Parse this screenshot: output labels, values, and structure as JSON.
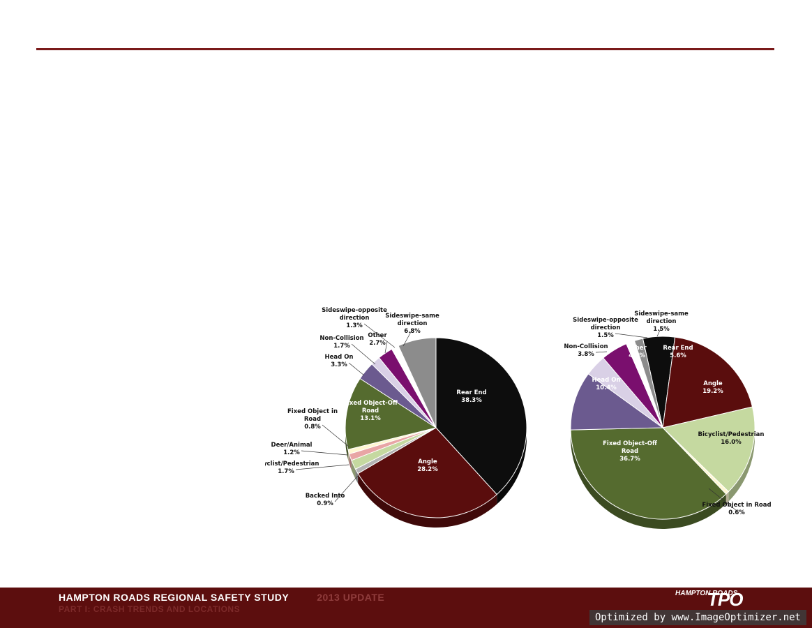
{
  "chart_data": [
    {
      "type": "pie",
      "categories": [
        "Rear End",
        "Angle",
        "Backed Into",
        "Bicyclist/Pedestrian",
        "Deer/Animal",
        "Fixed Object in Road",
        "Fixed Object-Off Road",
        "Head On",
        "Non-Collision",
        "Other",
        "Sideswipe-opposite direction",
        "Sideswipe-same direction"
      ],
      "values": [
        38.3,
        28.2,
        0.9,
        1.7,
        1.2,
        0.8,
        13.1,
        3.3,
        1.7,
        2.7,
        1.3,
        6.8
      ],
      "labels": [
        "38.3%",
        "28.2%",
        "0.9%",
        "1.7%",
        "1.2%",
        "0.8%",
        "13.1%",
        "3.3%",
        "1.7%",
        "2.7%",
        "1.3%",
        "6.8%"
      ],
      "colors": [
        "#0d0d0d",
        "#5a0d0d",
        "#b3b3b3",
        "#c5d9a0",
        "#e8a5a5",
        "#fff7d2",
        "#556b2f",
        "#6b5a8f",
        "#d9d0e6",
        "#7a0f6e",
        "#ffffff",
        "#8c8c8c"
      ]
    },
    {
      "type": "pie",
      "categories": [
        "Rear End",
        "Angle",
        "Bicyclist/Pedestrian",
        "Fixed Object in Road",
        "Fixed Object-Off Road",
        "Head On",
        "Non-Collision",
        "Other",
        "Sideswipe-opposite direction",
        "Sideswipe-same direction"
      ],
      "values": [
        5.6,
        19.2,
        16.0,
        0.6,
        36.7,
        10.4,
        3.8,
        4.7,
        1.5,
        1.5
      ],
      "labels": [
        "5.6%",
        "19.2%",
        "16.0%",
        "0.6%",
        "36.7%",
        "10.4%",
        "3.8%",
        "4.7%",
        "1.5%",
        "1.5%"
      ],
      "colors": [
        "#0d0d0d",
        "#5a0d0d",
        "#c5d9a0",
        "#fff7d2",
        "#556b2f",
        "#6b5a8f",
        "#d9d0e6",
        "#7a0f6e",
        "#ffffff",
        "#8c8c8c"
      ]
    }
  ],
  "footer": {
    "line1": "HAMPTON ROADS REGIONAL SAFETY STUDY",
    "update": "2013 UPDATE",
    "line2": "PART I: CRASH TRENDS AND LOCATIONS",
    "logo_small": "HAMPTON ROADS",
    "logo_tpo": "TPO"
  },
  "watermark": "Optimized by www.ImageOptimizer.net"
}
